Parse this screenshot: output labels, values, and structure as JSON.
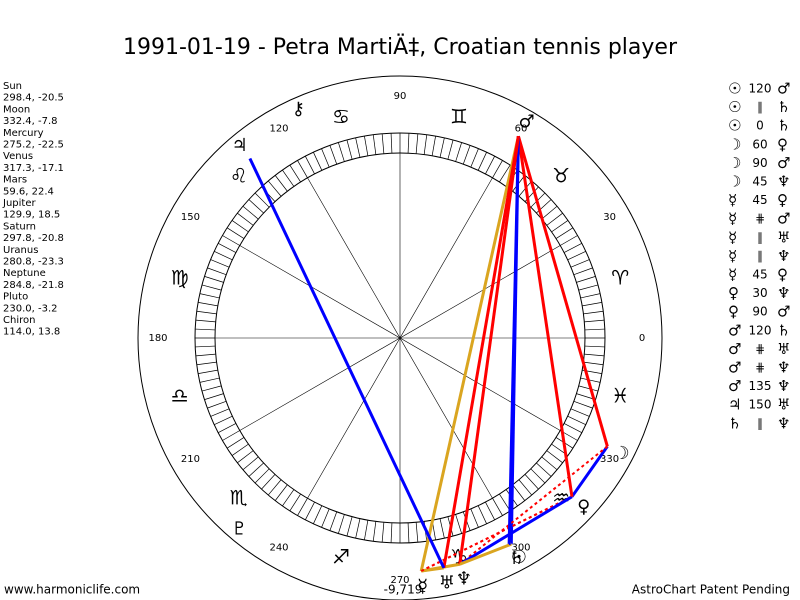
{
  "title": "1991-01-19 - Petra MartiÄ‡, Croatian tennis player",
  "planets": [
    {
      "name": "Sun",
      "position": "298.4, -20.5",
      "glyph": "☉"
    },
    {
      "name": "Moon",
      "position": "332.4, -7.8",
      "glyph": "☽"
    },
    {
      "name": "Mercury",
      "position": "275.2, -22.5",
      "glyph": "☿"
    },
    {
      "name": "Venus",
      "position": "317.3, -17.1",
      "glyph": "♀"
    },
    {
      "name": "Mars",
      "position": "59.6, 22.4",
      "glyph": "♂"
    },
    {
      "name": "Jupiter",
      "position": "129.9, 18.5",
      "glyph": "♃"
    },
    {
      "name": "Saturn",
      "position": "297.8, -20.8",
      "glyph": "♄"
    },
    {
      "name": "Uranus",
      "position": "280.8, -23.3",
      "glyph": "♅"
    },
    {
      "name": "Neptune",
      "position": "284.8, -21.8",
      "glyph": "♆"
    },
    {
      "name": "Pluto",
      "position": "230.0, -3.2",
      "glyph": "♇"
    },
    {
      "name": "Chiron",
      "position": "114.0, 13.8",
      "glyph": "⚷"
    }
  ],
  "signs": [
    "♈",
    "♉",
    "♊",
    "♋",
    "♌",
    "♍",
    "♎",
    "♏",
    "♐",
    "♑",
    "♒",
    "♓"
  ],
  "degree_labels": [
    0,
    30,
    60,
    90,
    120,
    150,
    180,
    210,
    240,
    270,
    300,
    330
  ],
  "aspects": [
    {
      "a": "☉",
      "aspect": "120",
      "b": "♂",
      "color": "#0000ff",
      "dashed": false
    },
    {
      "a": "☉",
      "aspect": "∥",
      "b": "♄",
      "color": "#daa520",
      "dashed": false
    },
    {
      "a": "☉",
      "aspect": "0",
      "b": "♄",
      "color": "#daa520",
      "dashed": false
    },
    {
      "a": "☽",
      "aspect": "60",
      "b": "♀",
      "color": "#0000ff",
      "dashed": false
    },
    {
      "a": "☽",
      "aspect": "90",
      "b": "♂",
      "color": "#ff0000",
      "dashed": false
    },
    {
      "a": "☽",
      "aspect": "45",
      "b": "♆",
      "color": "#ff0000",
      "dashed": true
    },
    {
      "a": "☿",
      "aspect": "45",
      "b": "♀",
      "color": "#ff0000",
      "dashed": true
    },
    {
      "a": "☿",
      "aspect": "⋕",
      "b": "♂",
      "color": "#daa520",
      "dashed": false
    },
    {
      "a": "☿",
      "aspect": "∥",
      "b": "♅",
      "color": "#daa520",
      "dashed": false
    },
    {
      "a": "☿",
      "aspect": "∥",
      "b": "♆",
      "color": "#daa520",
      "dashed": false
    },
    {
      "a": "☿",
      "aspect": "45",
      "b": "♀",
      "color": "#ff0000",
      "dashed": true
    },
    {
      "a": "♀",
      "aspect": "30",
      "b": "♆",
      "color": "#0000ff",
      "dashed": false
    },
    {
      "a": "♀",
      "aspect": "90",
      "b": "♂",
      "color": "#ff0000",
      "dashed": false
    },
    {
      "a": "♂",
      "aspect": "120",
      "b": "♄",
      "color": "#0000ff",
      "dashed": false
    },
    {
      "a": "♂",
      "aspect": "⋕",
      "b": "♅",
      "color": "#ff0000",
      "dashed": false
    },
    {
      "a": "♂",
      "aspect": "⋕",
      "b": "♆",
      "color": "#ff0000",
      "dashed": false
    },
    {
      "a": "♂",
      "aspect": "135",
      "b": "♆",
      "color": "#ff0000",
      "dashed": true
    },
    {
      "a": "♃",
      "aspect": "150",
      "b": "♅",
      "color": "#0000ff",
      "dashed": false
    },
    {
      "a": "♄",
      "aspect": "∥",
      "b": "♆",
      "color": "#daa520",
      "dashed": false
    }
  ],
  "bottom_value": "-9,719",
  "footer_left": "www.harmoniclife.com",
  "footer_right": "AstroChart Patent Pending"
}
